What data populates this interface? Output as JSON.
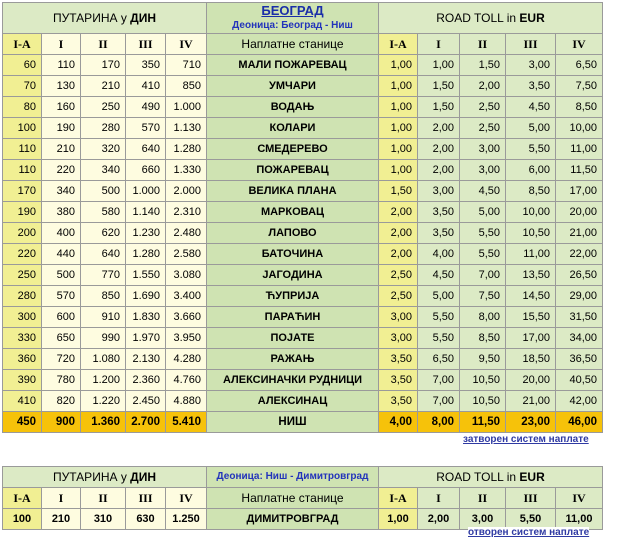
{
  "top": {
    "left_caption_prefix": "ПУТАРИНА у ",
    "left_caption_currency": "ДИН",
    "mid_title": "БЕОГРАД",
    "mid_subtitle": "Деоница: Београд - Ниш",
    "right_caption_prefix": "ROAD TOLL in ",
    "right_caption_currency": "EUR",
    "col_headers": [
      "I-A",
      "I",
      "II",
      "III",
      "IV"
    ],
    "station_header": "Наплатне станице",
    "rows": [
      {
        "din": [
          "60",
          "110",
          "170",
          "350",
          "710"
        ],
        "station": "МАЛИ ПОЖАРЕВАЦ",
        "eur": [
          "1,00",
          "1,00",
          "1,50",
          "3,00",
          "6,50"
        ]
      },
      {
        "din": [
          "70",
          "130",
          "210",
          "410",
          "850"
        ],
        "station": "УМЧАРИ",
        "eur": [
          "1,00",
          "1,50",
          "2,00",
          "3,50",
          "7,50"
        ]
      },
      {
        "din": [
          "80",
          "160",
          "250",
          "490",
          "1.000"
        ],
        "station": "ВОДАЊ",
        "eur": [
          "1,00",
          "1,50",
          "2,50",
          "4,50",
          "8,50"
        ]
      },
      {
        "din": [
          "100",
          "190",
          "280",
          "570",
          "1.130"
        ],
        "station": "КОЛАРИ",
        "eur": [
          "1,00",
          "2,00",
          "2,50",
          "5,00",
          "10,00"
        ]
      },
      {
        "din": [
          "110",
          "210",
          "320",
          "640",
          "1.280"
        ],
        "station": "СМЕДЕРЕВО",
        "eur": [
          "1,00",
          "2,00",
          "3,00",
          "5,50",
          "11,00"
        ]
      },
      {
        "din": [
          "110",
          "220",
          "340",
          "660",
          "1.330"
        ],
        "station": "ПОЖАРЕВАЦ",
        "eur": [
          "1,00",
          "2,00",
          "3,00",
          "6,00",
          "11,50"
        ]
      },
      {
        "din": [
          "170",
          "340",
          "500",
          "1.000",
          "2.000"
        ],
        "station": "ВЕЛИКА ПЛАНА",
        "eur": [
          "1,50",
          "3,00",
          "4,50",
          "8,50",
          "17,00"
        ]
      },
      {
        "din": [
          "190",
          "380",
          "580",
          "1.140",
          "2.310"
        ],
        "station": "МАРКОВАЦ",
        "eur": [
          "2,00",
          "3,50",
          "5,00",
          "10,00",
          "20,00"
        ]
      },
      {
        "din": [
          "200",
          "400",
          "620",
          "1.230",
          "2.480"
        ],
        "station": "ЛАПОВО",
        "eur": [
          "2,00",
          "3,50",
          "5,50",
          "10,50",
          "21,00"
        ]
      },
      {
        "din": [
          "220",
          "440",
          "640",
          "1.280",
          "2.580"
        ],
        "station": "БАТОЧИНА",
        "eur": [
          "2,00",
          "4,00",
          "5,50",
          "11,00",
          "22,00"
        ]
      },
      {
        "din": [
          "250",
          "500",
          "770",
          "1.550",
          "3.080"
        ],
        "station": "ЈАГОДИНА",
        "eur": [
          "2,50",
          "4,50",
          "7,00",
          "13,50",
          "26,50"
        ]
      },
      {
        "din": [
          "280",
          "570",
          "850",
          "1.690",
          "3.400"
        ],
        "station": "ЋУПРИЈА",
        "eur": [
          "2,50",
          "5,00",
          "7,50",
          "14,50",
          "29,00"
        ]
      },
      {
        "din": [
          "300",
          "600",
          "910",
          "1.830",
          "3.660"
        ],
        "station": "ПАРАЋИН",
        "eur": [
          "3,00",
          "5,50",
          "8,00",
          "15,50",
          "31,50"
        ]
      },
      {
        "din": [
          "330",
          "650",
          "990",
          "1.970",
          "3.950"
        ],
        "station": "ПОЈАТЕ",
        "eur": [
          "3,00",
          "5,50",
          "8,50",
          "17,00",
          "34,00"
        ]
      },
      {
        "din": [
          "360",
          "720",
          "1.080",
          "2.130",
          "4.280"
        ],
        "station": "РАЖАЊ",
        "eur": [
          "3,50",
          "6,50",
          "9,50",
          "18,50",
          "36,50"
        ]
      },
      {
        "din": [
          "390",
          "780",
          "1.200",
          "2.360",
          "4.760"
        ],
        "station": "АЛЕКСИНАЧКИ РУДНИЦИ",
        "eur": [
          "3,50",
          "7,00",
          "10,50",
          "20,00",
          "40,50"
        ]
      },
      {
        "din": [
          "410",
          "820",
          "1.220",
          "2.450",
          "4.880"
        ],
        "station": "АЛЕКСИНАЦ",
        "eur": [
          "3,50",
          "7,00",
          "10,50",
          "21,00",
          "42,00"
        ]
      }
    ],
    "total": {
      "din": [
        "450",
        "900",
        "1.360",
        "2.700",
        "5.410"
      ],
      "station": "НИШ",
      "eur": [
        "4,00",
        "8,00",
        "11,50",
        "23,00",
        "46,00"
      ]
    },
    "footnote": "затворен систем наплате"
  },
  "bottom": {
    "left_caption_prefix": "ПУТАРИНА у ",
    "left_caption_currency": "ДИН",
    "mid_title": "Деоница: Ниш - Димитровград",
    "right_caption_prefix": "ROAD TOLL in ",
    "right_caption_currency": "EUR",
    "col_headers": [
      "I-A",
      "I",
      "II",
      "III",
      "IV"
    ],
    "station_header": "Наплатне станице",
    "row": {
      "din": [
        "100",
        "210",
        "310",
        "630",
        "1.250"
      ],
      "station": "ДИМИТРОВГРАД",
      "eur": [
        "1,00",
        "2,00",
        "3,00",
        "5,50",
        "11,00"
      ]
    },
    "footnote": "отворен систем наплате"
  }
}
